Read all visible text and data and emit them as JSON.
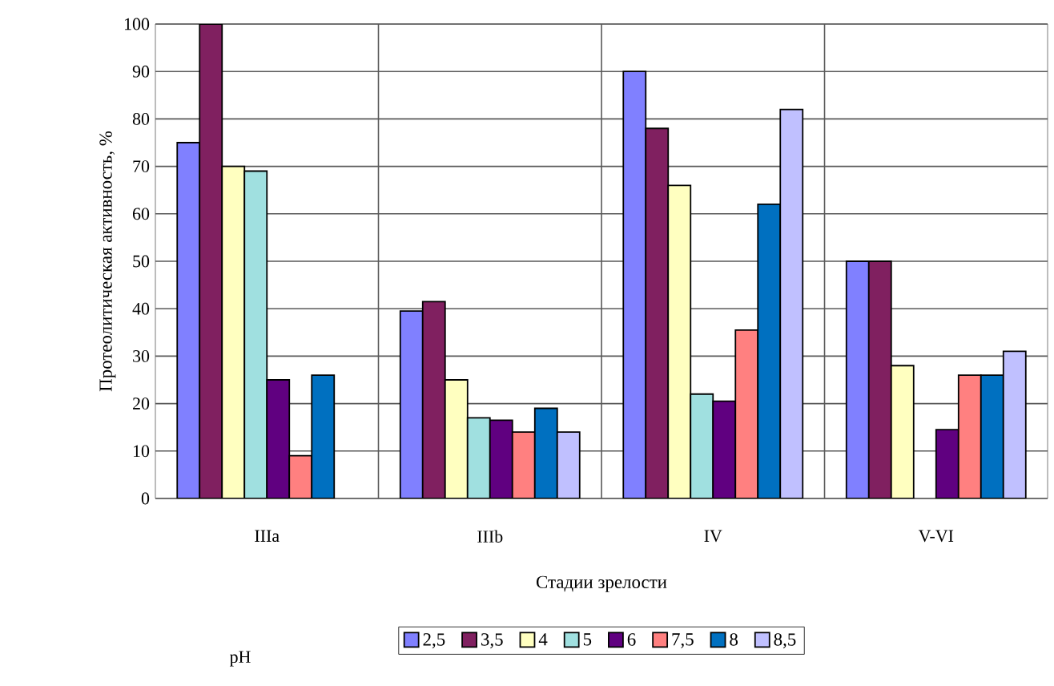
{
  "chart_data": {
    "type": "bar",
    "xlabel": "Стадии зрелости",
    "ylabel": "Протеолитическая активность, %",
    "legend_title": "pH",
    "categories": [
      "IIIa",
      "IIIb",
      "IV",
      "V-VI"
    ],
    "series": [
      {
        "name": "2,5",
        "color": "#8080ff",
        "values": [
          75,
          39.5,
          90,
          50
        ]
      },
      {
        "name": "3,5",
        "color": "#802060",
        "values": [
          100,
          41.5,
          78,
          50
        ]
      },
      {
        "name": "4",
        "color": "#ffffc0",
        "values": [
          70,
          25,
          66,
          28
        ]
      },
      {
        "name": "5",
        "color": "#a0e0e0",
        "values": [
          69,
          17,
          22,
          null
        ]
      },
      {
        "name": "6",
        "color": "#600080",
        "values": [
          25,
          16.5,
          20.5,
          14.5
        ]
      },
      {
        "name": "7,5",
        "color": "#ff8080",
        "values": [
          9,
          14,
          35.5,
          26
        ]
      },
      {
        "name": "8",
        "color": "#0070c0",
        "values": [
          26,
          19,
          62,
          26
        ]
      },
      {
        "name": "8,5",
        "color": "#c0c0ff",
        "values": [
          null,
          14,
          82,
          31
        ]
      }
    ],
    "ylim": [
      0,
      100
    ],
    "yticks": [
      0,
      10,
      20,
      30,
      40,
      50,
      60,
      70,
      80,
      90,
      100
    ],
    "grid": true,
    "legend": "bottom"
  }
}
